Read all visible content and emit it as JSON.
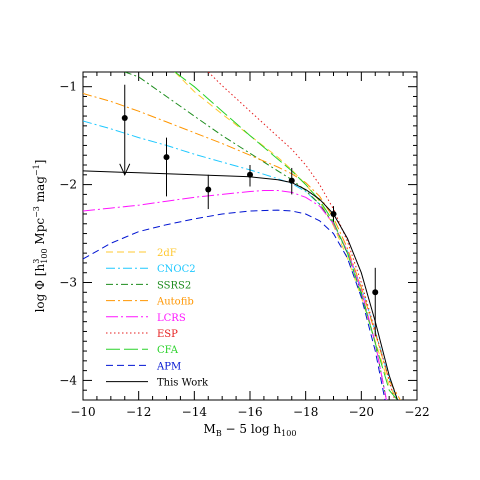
{
  "chart_data": {
    "type": "line",
    "xlabel": {
      "main": "M",
      "sub": "B",
      "rest": " − 5 log h",
      "sub2": "100"
    },
    "ylabel": {
      "pre": "log Φ [h",
      "sup1": "3",
      "sub1": "100",
      "mid": " Mpc",
      "sup2": "−3",
      "mid2": " mag",
      "sup3": "−1",
      "post": "]"
    },
    "xlim": [
      -10,
      -22
    ],
    "ylim": [
      -4.2,
      -0.85
    ],
    "xticks": [
      -10,
      -12,
      -14,
      -16,
      -18,
      -20,
      -22
    ],
    "xtick_labels": [
      "−10",
      "−12",
      "−14",
      "−16",
      "−18",
      "−20",
      "−22"
    ],
    "yticks": [
      -1,
      -2,
      -3,
      -4
    ],
    "ytick_labels": [
      "−1",
      "−2",
      "−3",
      "−4"
    ],
    "legend_position": "lower-left",
    "series": [
      {
        "name": "2dF",
        "color": "#ffc830",
        "dash": "7,4",
        "x": [
          -13.3,
          -14,
          -15,
          -16,
          -17,
          -17.5,
          -18,
          -18.5,
          -19,
          -19.5,
          -20,
          -20.5,
          -21,
          -21.3
        ],
        "y": [
          -0.85,
          -1.05,
          -1.28,
          -1.5,
          -1.72,
          -1.85,
          -2.0,
          -2.17,
          -2.42,
          -2.75,
          -3.15,
          -3.6,
          -4.05,
          -4.2
        ]
      },
      {
        "name": "CNOC2",
        "color": "#1ec8ff",
        "dash": "9,3,2,3",
        "x": [
          -10,
          -11,
          -12,
          -13,
          -14,
          -15,
          -16,
          -17,
          -17.5,
          -18,
          -18.5,
          -19,
          -19.5,
          -20,
          -20.5,
          -21,
          -21.3
        ],
        "y": [
          -1.35,
          -1.43,
          -1.52,
          -1.6,
          -1.69,
          -1.77,
          -1.85,
          -1.94,
          -1.99,
          -2.07,
          -2.2,
          -2.4,
          -2.68,
          -3.05,
          -3.5,
          -3.98,
          -4.2
        ]
      },
      {
        "name": "SSRS2",
        "color": "#1c8c1c",
        "dash": "7,3,2,3",
        "x": [
          -11.5,
          -12,
          -13,
          -14,
          -15,
          -16,
          -17,
          -17.5,
          -18,
          -18.5,
          -19,
          -19.5,
          -20,
          -20.5,
          -20.9
        ],
        "y": [
          -0.85,
          -0.9,
          -1.1,
          -1.3,
          -1.5,
          -1.68,
          -1.86,
          -1.95,
          -2.06,
          -2.2,
          -2.4,
          -2.7,
          -3.1,
          -3.62,
          -4.2
        ]
      },
      {
        "name": "Autofib",
        "color": "#ff9600",
        "dash": "9,3,2,3",
        "x": [
          -10,
          -11,
          -12,
          -13,
          -14,
          -15,
          -16,
          -17,
          -17.5,
          -18,
          -18.5,
          -19,
          -19.5,
          -20,
          -20.5,
          -21,
          -21.4
        ],
        "y": [
          -1.07,
          -1.15,
          -1.25,
          -1.36,
          -1.47,
          -1.58,
          -1.7,
          -1.82,
          -1.89,
          -1.98,
          -2.12,
          -2.34,
          -2.65,
          -3.05,
          -3.52,
          -4.0,
          -4.2
        ]
      },
      {
        "name": "LCRS",
        "color": "#ff14ff",
        "dash": "12,3,2,3",
        "x": [
          -10,
          -11,
          -12,
          -13,
          -14,
          -15,
          -16,
          -16.5,
          -17,
          -17.5,
          -18,
          -18.5,
          -19,
          -19.5,
          -20,
          -20.5,
          -20.9
        ],
        "y": [
          -2.27,
          -2.24,
          -2.21,
          -2.17,
          -2.13,
          -2.1,
          -2.07,
          -2.06,
          -2.06,
          -2.08,
          -2.13,
          -2.22,
          -2.4,
          -2.68,
          -3.08,
          -3.62,
          -4.2
        ]
      },
      {
        "name": "ESP",
        "color": "#e61e1e",
        "dash": "1.5,2.5",
        "x": [
          -14.5,
          -15,
          -15.5,
          -16,
          -16.5,
          -17,
          -17.5,
          -18,
          -18.5,
          -19,
          -19.5,
          -20,
          -20.5,
          -21,
          -21.2
        ],
        "y": [
          -0.85,
          -0.99,
          -1.12,
          -1.25,
          -1.38,
          -1.51,
          -1.64,
          -1.8,
          -2.0,
          -2.25,
          -2.58,
          -3.0,
          -3.5,
          -4.0,
          -4.2
        ]
      },
      {
        "name": "CFA",
        "color": "#28d228",
        "dash": "14,4",
        "x": [
          -13.3,
          -14,
          -15,
          -16,
          -17,
          -17.5,
          -18,
          -18.5,
          -19,
          -19.5,
          -20,
          -20.5,
          -21,
          -21.3
        ],
        "y": [
          -0.85,
          -1.0,
          -1.25,
          -1.5,
          -1.74,
          -1.86,
          -2.0,
          -2.16,
          -2.38,
          -2.7,
          -3.12,
          -3.62,
          -4.1,
          -4.2
        ]
      },
      {
        "name": "APM",
        "color": "#0014d2",
        "dash": "7,4",
        "x": [
          -10,
          -11,
          -12,
          -13,
          -14,
          -15,
          -16,
          -17,
          -17.5,
          -18,
          -18.5,
          -19,
          -19.5,
          -20,
          -20.5,
          -20.85
        ],
        "y": [
          -2.76,
          -2.6,
          -2.48,
          -2.41,
          -2.35,
          -2.3,
          -2.27,
          -2.26,
          -2.27,
          -2.3,
          -2.37,
          -2.5,
          -2.75,
          -3.15,
          -3.7,
          -4.2
        ]
      },
      {
        "name": "This Work",
        "color": "#000000",
        "dash": "",
        "x": [
          -10,
          -11,
          -12,
          -13,
          -14,
          -15,
          -16,
          -17,
          -17.5,
          -18,
          -18.5,
          -19,
          -19.5,
          -20,
          -20.5,
          -21,
          -21.3
        ],
        "y": [
          -1.86,
          -1.87,
          -1.88,
          -1.89,
          -1.9,
          -1.91,
          -1.92,
          -1.95,
          -1.98,
          -2.05,
          -2.15,
          -2.3,
          -2.55,
          -2.9,
          -3.4,
          -3.95,
          -4.2
        ]
      }
    ],
    "points": [
      {
        "x": -11.5,
        "y": -1.32,
        "ylow": -1.9,
        "yhigh": -0.98,
        "upper_limit": true
      },
      {
        "x": -13.0,
        "y": -1.72,
        "ylow": -2.12,
        "yhigh": -1.52,
        "upper_limit": false
      },
      {
        "x": -14.5,
        "y": -2.05,
        "ylow": -2.25,
        "yhigh": -1.9,
        "upper_limit": false
      },
      {
        "x": -16.0,
        "y": -1.9,
        "ylow": -2.02,
        "yhigh": -1.8,
        "upper_limit": false
      },
      {
        "x": -17.5,
        "y": -1.96,
        "ylow": -2.1,
        "yhigh": -1.83,
        "upper_limit": false
      },
      {
        "x": -19.0,
        "y": -2.3,
        "ylow": -2.38,
        "yhigh": -2.22,
        "upper_limit": false
      },
      {
        "x": -20.5,
        "y": -3.1,
        "ylow": -3.55,
        "yhigh": -2.85,
        "upper_limit": false
      }
    ]
  }
}
